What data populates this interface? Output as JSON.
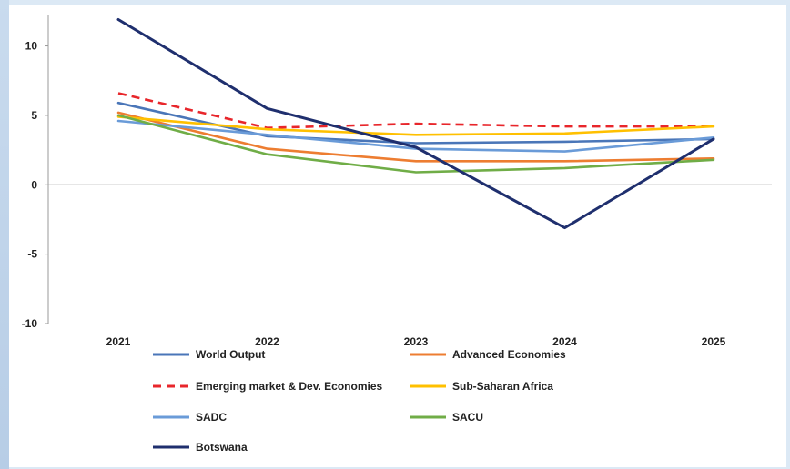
{
  "chart_data": {
    "type": "line",
    "categories": [
      "2021",
      "2022",
      "2023",
      "2024",
      "2025"
    ],
    "ylim": [
      -10,
      12
    ],
    "yticks": [
      10,
      5,
      0,
      -5,
      -10
    ],
    "grid": false,
    "legend_position": "bottom",
    "series": [
      {
        "name": "World Output",
        "values": [
          5.9,
          3.5,
          3.0,
          3.1,
          3.3
        ],
        "color": "#4a76b8",
        "dash": false
      },
      {
        "name": "Advanced Economies",
        "values": [
          5.2,
          2.6,
          1.7,
          1.7,
          1.9
        ],
        "color": "#ed7d31",
        "dash": false
      },
      {
        "name": "Emerging market & Dev. Economies",
        "values": [
          6.6,
          4.1,
          4.4,
          4.2,
          4.2
        ],
        "color": "#e8262b",
        "dash": true
      },
      {
        "name": "Sub-Saharan Africa",
        "values": [
          4.9,
          4.0,
          3.6,
          3.7,
          4.2
        ],
        "color": "#ffc000",
        "dash": false
      },
      {
        "name": "SADC",
        "values": [
          4.6,
          3.6,
          2.6,
          2.4,
          3.4
        ],
        "color": "#6a9bd8",
        "dash": false
      },
      {
        "name": "SACU",
        "values": [
          5.0,
          2.2,
          0.9,
          1.2,
          1.8
        ],
        "color": "#70ad47",
        "dash": false
      },
      {
        "name": "Botswana",
        "values": [
          11.9,
          5.5,
          2.7,
          -3.1,
          3.3
        ],
        "color": "#1f2f6e",
        "dash": false
      }
    ]
  }
}
